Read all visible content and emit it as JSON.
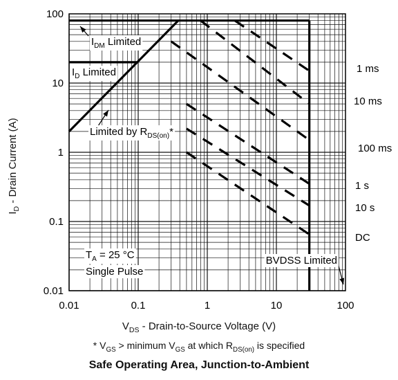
{
  "chart_data": {
    "type": "line",
    "title": "Safe Operating Area, Junction-to-Ambient",
    "xlabel": "V_DS - Drain-to-Source Voltage (V)",
    "ylabel": "I_D - Drain Current (A)",
    "footnote": "* V_GS > minimum V_GS at which R_DS(on) is specified",
    "xscale": "log",
    "yscale": "log",
    "xlim": [
      0.01,
      100
    ],
    "ylim": [
      0.01,
      100
    ],
    "x_ticks": [
      "0.01",
      "0.1",
      "1",
      "10",
      "100"
    ],
    "y_ticks": [
      "0.01",
      "0.1",
      "1",
      "10",
      "100"
    ],
    "grid": true,
    "limits": {
      "idm_limited": 80,
      "id_limited": 20,
      "bvdss_limited": 30
    },
    "series": [
      {
        "name": "Limited by R_DS(on)*",
        "style": "solid",
        "x": [
          0.01,
          0.38
        ],
        "y": [
          2,
          80
        ]
      },
      {
        "name": "I_DM Limited",
        "style": "solid",
        "x": [
          0.01,
          30
        ],
        "y": [
          80,
          80
        ]
      },
      {
        "name": "I_D Limited",
        "style": "solid",
        "x": [
          0.01,
          0.1
        ],
        "y": [
          20,
          20
        ]
      },
      {
        "name": "BVDSS Limited",
        "style": "solid",
        "x": [
          30,
          30
        ],
        "y": [
          0.01,
          80
        ]
      },
      {
        "name": "1 ms",
        "style": "dashed",
        "x": [
          2.5,
          30
        ],
        "y": [
          80,
          15
        ]
      },
      {
        "name": "10 ms",
        "style": "dashed",
        "x": [
          0.8,
          30
        ],
        "y": [
          80,
          5
        ]
      },
      {
        "name": "100 ms",
        "style": "dashed",
        "x": [
          0.3,
          30
        ],
        "y": [
          40,
          1.5
        ]
      },
      {
        "name": "1 s",
        "style": "dashed",
        "x": [
          0.5,
          30
        ],
        "y": [
          5,
          0.35
        ]
      },
      {
        "name": "10 s",
        "style": "dashed",
        "x": [
          0.5,
          30
        ],
        "y": [
          2.2,
          0.17
        ]
      },
      {
        "name": "DC",
        "style": "dashed",
        "x": [
          0.5,
          30
        ],
        "y": [
          1,
          0.065
        ]
      }
    ],
    "annotations": {
      "ta": "T_A = 25 °C",
      "pulse": "Single Pulse",
      "idm": "I_DM Limited",
      "id": "I_D Limited",
      "rds": "Limited by R_DS(on)*",
      "bvdss": "BVDSS Limited",
      "ms1": "1 ms",
      "ms10": "10 ms",
      "ms100": "100 ms",
      "s1": "1 s",
      "s10": "10 s",
      "dc": "DC"
    }
  }
}
